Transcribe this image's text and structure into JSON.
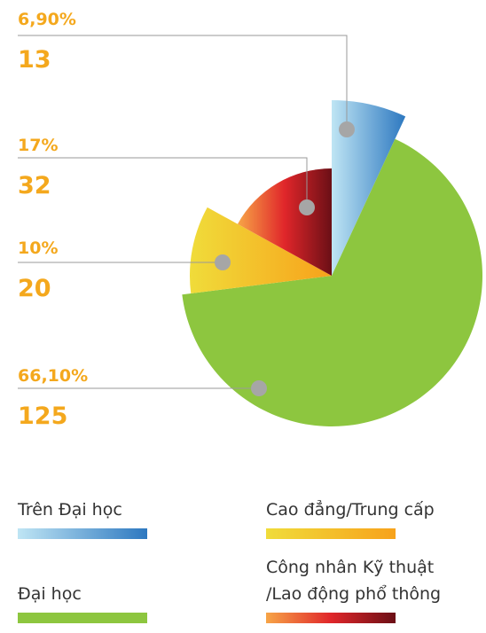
{
  "chart_data": {
    "type": "pie",
    "labels": [
      "Trên Đại học",
      "Đại học",
      "Cao đẳng/Trung cấp",
      "Công nhân Kỹ thuật /Lao động phổ thông"
    ],
    "values": [
      6.9,
      66.1,
      10,
      17
    ],
    "value_labels": [
      "6,90%",
      "66,10%",
      "10%",
      "17%"
    ],
    "counts": [
      13,
      125,
      20,
      32
    ],
    "colors": [
      [
        "#bfe5f4",
        "#2d78c0"
      ],
      [
        "#8dc63f",
        "#8dc63f"
      ],
      [
        "#f0dc3a",
        "#f7a21b"
      ],
      [
        "#f7a547",
        "#e0262a",
        "#6b0f16"
      ]
    ]
  }
}
